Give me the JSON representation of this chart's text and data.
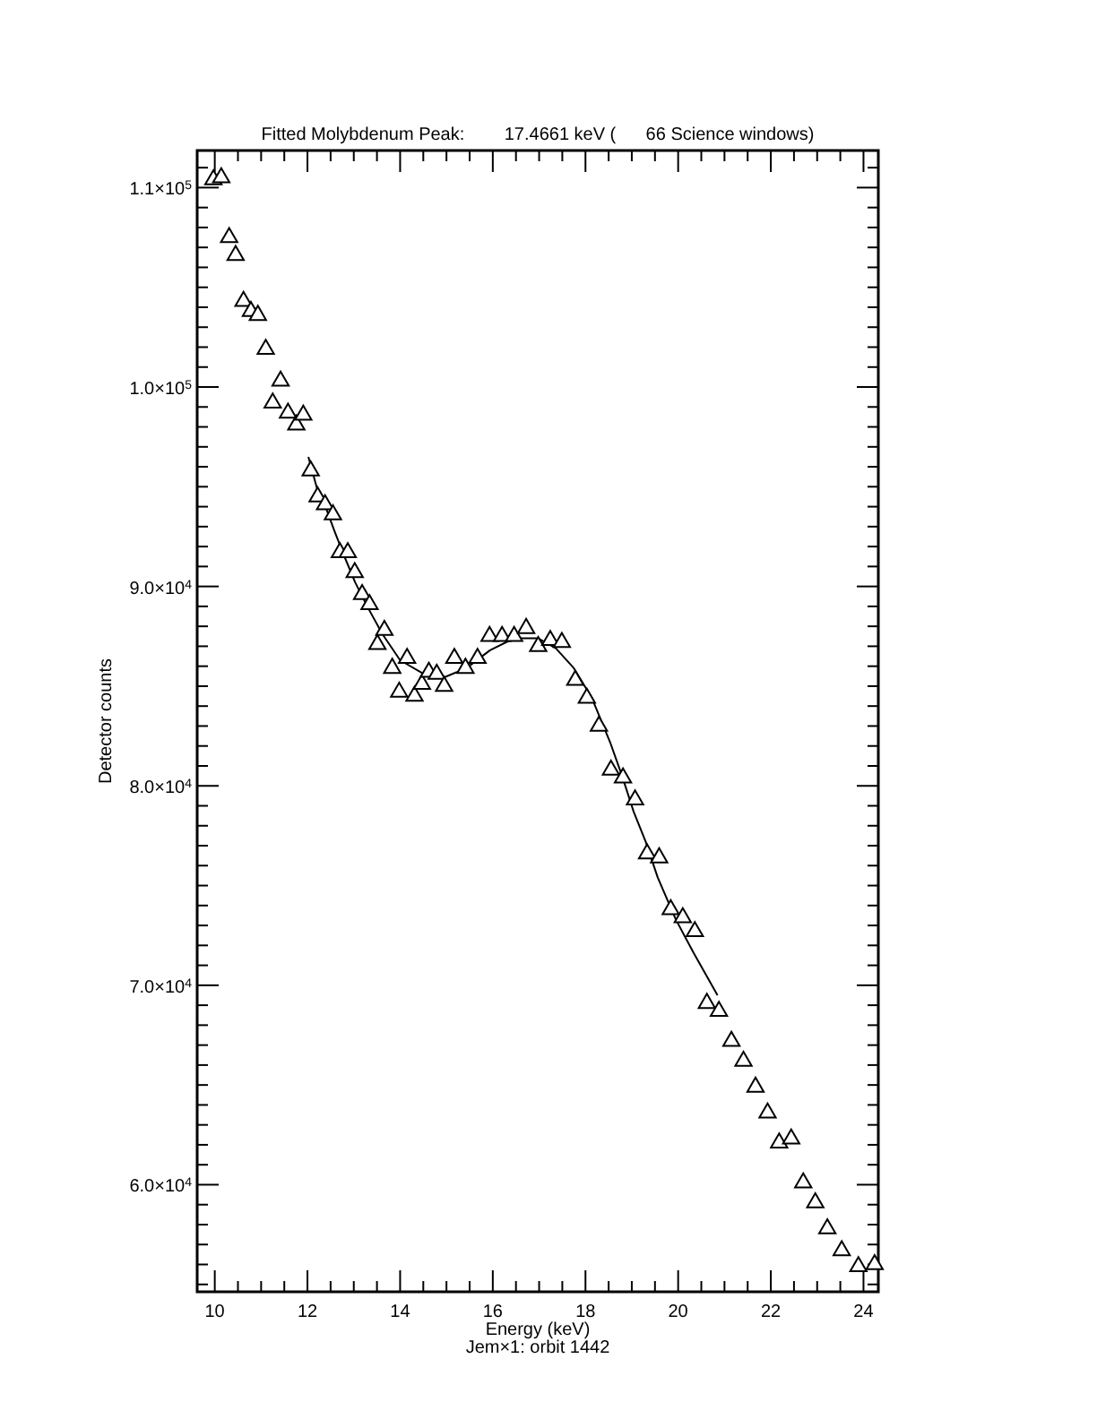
{
  "chart_data": {
    "type": "scatter",
    "title": "Fitted Molybdenum Peak:        17.4661 keV (      66 Science windows)",
    "xlabel": "Energy (keV)",
    "ylabel": "Detector counts",
    "annotations": [
      "Jem×1: orbit 1442"
    ],
    "xlim": [
      9.62,
      24.32
    ],
    "ylim": [
      54630,
      111860
    ],
    "xticks": [
      10,
      {
        "value": 10.5,
        "label": null
      },
      {
        "value": 11,
        "label": null
      },
      {
        "value": 11.5,
        "label": null
      },
      12,
      {
        "value": 12.5,
        "label": null
      },
      {
        "value": 13,
        "label": null
      },
      {
        "value": 13.5,
        "label": null
      },
      14,
      {
        "value": 14.5,
        "label": null
      },
      {
        "value": 15,
        "label": null
      },
      {
        "value": 15.5,
        "label": null
      },
      16,
      {
        "value": 16.5,
        "label": null
      },
      {
        "value": 17,
        "label": null
      },
      {
        "value": 17.5,
        "label": null
      },
      18,
      {
        "value": 18.5,
        "label": null
      },
      {
        "value": 19,
        "label": null
      },
      {
        "value": 19.5,
        "label": null
      },
      20,
      {
        "value": 20.5,
        "label": null
      },
      {
        "value": 21,
        "label": null
      },
      {
        "value": 21.5,
        "label": null
      },
      22,
      {
        "value": 22.5,
        "label": null
      },
      {
        "value": 23,
        "label": null
      },
      {
        "value": 23.5,
        "label": null
      },
      24
    ],
    "yticks": [
      {
        "value": 55000,
        "label": null
      },
      {
        "value": 56000,
        "label": null
      },
      {
        "value": 57000,
        "label": null
      },
      {
        "value": 58000,
        "label": null
      },
      {
        "value": 59000,
        "label": null
      },
      {
        "value": 60000,
        "label": "6.0×10$^{4}$"
      },
      {
        "value": 61000,
        "label": null
      },
      {
        "value": 62000,
        "label": null
      },
      {
        "value": 63000,
        "label": null
      },
      {
        "value": 64000,
        "label": null
      },
      {
        "value": 65000,
        "label": null
      },
      {
        "value": 66000,
        "label": null
      },
      {
        "value": 67000,
        "label": null
      },
      {
        "value": 68000,
        "label": null
      },
      {
        "value": 69000,
        "label": null
      },
      {
        "value": 70000,
        "label": "7.0×10$^{4}$"
      },
      {
        "value": 71000,
        "label": null
      },
      {
        "value": 72000,
        "label": null
      },
      {
        "value": 73000,
        "label": null
      },
      {
        "value": 74000,
        "label": null
      },
      {
        "value": 75000,
        "label": null
      },
      {
        "value": 76000,
        "label": null
      },
      {
        "value": 77000,
        "label": null
      },
      {
        "value": 78000,
        "label": null
      },
      {
        "value": 79000,
        "label": null
      },
      {
        "value": 80000,
        "label": "8.0×10$^{4}$"
      },
      {
        "value": 81000,
        "label": null
      },
      {
        "value": 82000,
        "label": null
      },
      {
        "value": 83000,
        "label": null
      },
      {
        "value": 84000,
        "label": null
      },
      {
        "value": 85000,
        "label": null
      },
      {
        "value": 86000,
        "label": null
      },
      {
        "value": 87000,
        "label": null
      },
      {
        "value": 88000,
        "label": null
      },
      {
        "value": 89000,
        "label": null
      },
      {
        "value": 90000,
        "label": "9.0×10$^{4}$"
      },
      {
        "value": 91000,
        "label": null
      },
      {
        "value": 92000,
        "label": null
      },
      {
        "value": 93000,
        "label": null
      },
      {
        "value": 94000,
        "label": null
      },
      {
        "value": 95000,
        "label": null
      },
      {
        "value": 96000,
        "label": null
      },
      {
        "value": 97000,
        "label": null
      },
      {
        "value": 98000,
        "label": null
      },
      {
        "value": 99000,
        "label": null
      },
      {
        "value": 100000,
        "label": "1.0×10$^{5}$"
      },
      {
        "value": 101000,
        "label": null
      },
      {
        "value": 102000,
        "label": null
      },
      {
        "value": 103000,
        "label": null
      },
      {
        "value": 104000,
        "label": null
      },
      {
        "value": 105000,
        "label": null
      },
      {
        "value": 106000,
        "label": null
      },
      {
        "value": 107000,
        "label": null
      },
      {
        "value": 108000,
        "label": null
      },
      {
        "value": 109000,
        "label": null
      },
      {
        "value": 110000,
        "label": "1.1×10$^{5}$"
      },
      {
        "value": 111000,
        "label": null
      }
    ],
    "grid": false,
    "series": [
      {
        "marker": "triangle",
        "color": "#000000",
        "x": [
          9.97,
          10.14,
          10.31,
          10.45,
          10.62,
          10.78,
          10.93,
          11.1,
          11.25,
          11.42,
          11.58,
          11.76,
          11.91,
          12.07,
          12.22,
          12.38,
          12.55,
          12.7,
          12.87,
          13.02,
          13.18,
          13.34,
          13.51,
          13.66,
          13.83,
          13.98,
          14.15,
          14.31,
          14.47,
          14.62,
          14.79,
          14.95,
          15.17,
          15.41,
          15.67,
          15.93,
          16.2,
          16.46,
          16.72,
          16.98,
          17.24,
          17.49,
          17.78,
          18.03,
          18.29,
          18.55,
          18.81,
          19.07,
          19.33,
          19.59,
          19.84,
          20.1,
          20.36,
          20.62,
          20.88,
          21.15,
          21.41,
          21.67,
          21.93,
          22.18,
          22.44,
          22.7,
          22.96,
          23.22,
          23.53,
          23.89,
          24.24
        ],
        "values": [
          110400,
          110500,
          107500,
          106600,
          104300,
          103800,
          103600,
          101900,
          99200,
          100300,
          98700,
          98100,
          98600,
          95800,
          94500,
          94100,
          93600,
          91700,
          91700,
          90700,
          89600,
          89100,
          87100,
          87800,
          85900,
          84700,
          86400,
          84500,
          85100,
          85700,
          85600,
          85000,
          86400,
          85900,
          86400,
          87500,
          87500,
          87500,
          87900,
          87000,
          87300,
          87200,
          85300,
          84400,
          83000,
          80800,
          80400,
          79300,
          76600,
          76400,
          73800,
          73400,
          72700,
          69100,
          68700,
          67200,
          66200,
          64900,
          63600,
          62100,
          62300,
          60100,
          59100,
          57800,
          56700,
          55900,
          56000
        ]
      },
      {
        "type": "line",
        "marker": "none",
        "line_style": "solid",
        "color": "#000000",
        "x": [
          12.02,
          12.22,
          12.39,
          12.58,
          12.78,
          13.03,
          13.29,
          13.62,
          14.0,
          14.52,
          14.91,
          15.43,
          15.94,
          16.46,
          16.98,
          17.36,
          17.75,
          18.14,
          18.53,
          18.79,
          19.04,
          19.3,
          19.56,
          19.95,
          20.34,
          20.85
        ],
        "values": [
          96500,
          94800,
          94000,
          92800,
          91600,
          90200,
          89000,
          87600,
          86300,
          85600,
          85400,
          85900,
          86800,
          87400,
          87400,
          86900,
          85900,
          84400,
          82200,
          80500,
          78700,
          77200,
          75400,
          73300,
          71600,
          69500
        ]
      }
    ]
  }
}
